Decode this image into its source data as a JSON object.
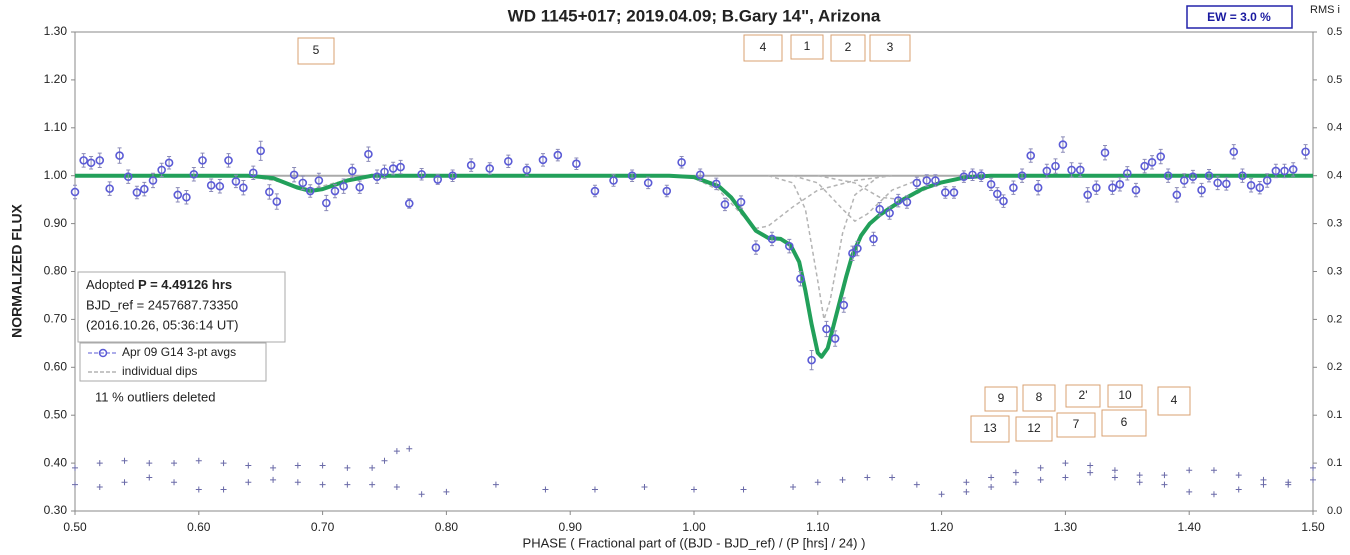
{
  "chart_data": {
    "type": "scatter",
    "title": "WD 1145+017; 2019.04.09; B.Gary 14\", Arizona",
    "x_label": "PHASE ( Fractional part of ((BJD - BJD_ref) / (P [hrs] / 24) )",
    "y_label": "NORMALIZED FLUX",
    "y2_label": "RMS i",
    "xlim": [
      0.5,
      1.5
    ],
    "ylim": [
      0.3,
      1.3
    ],
    "y2lim": [
      0,
      0.5
    ],
    "xticks": [
      {
        "value": 0.5,
        "label": "0.50"
      },
      {
        "value": 0.6,
        "label": "0.60"
      },
      {
        "value": 0.7,
        "label": "0.70"
      },
      {
        "value": 0.8,
        "label": "0.80"
      },
      {
        "value": 0.9,
        "label": "0.90"
      },
      {
        "value": 1.0,
        "label": "1.00"
      },
      {
        "value": 1.1,
        "label": "1.10"
      },
      {
        "value": 1.2,
        "label": "1.20"
      },
      {
        "value": 1.3,
        "label": "1.30"
      },
      {
        "value": 1.4,
        "label": "1.40"
      },
      {
        "value": 1.5,
        "label": "1.50"
      }
    ],
    "yticks": [
      {
        "value": 0.3,
        "label": "0.30"
      },
      {
        "value": 0.4,
        "label": "0.40"
      },
      {
        "value": 0.5,
        "label": "0.50"
      },
      {
        "value": 0.6,
        "label": "0.60"
      },
      {
        "value": 0.7,
        "label": "0.70"
      },
      {
        "value": 0.8,
        "label": "0.80"
      },
      {
        "value": 0.9,
        "label": "0.90"
      },
      {
        "value": 1.0,
        "label": "1.00"
      },
      {
        "value": 1.1,
        "label": "1.10"
      },
      {
        "value": 1.2,
        "label": "1.20"
      },
      {
        "value": 1.3,
        "label": "1.30"
      }
    ],
    "y2ticks": [
      {
        "value": 0,
        "label": "0.0"
      },
      {
        "value": 0.05,
        "label": "0.1"
      },
      0.1,
      {
        "value": 0.15,
        "label": "0.2"
      },
      0.2,
      {
        "value": 0.25,
        "label": "0.3"
      },
      0.3,
      {
        "value": 0.35,
        "label": "0.4"
      },
      0.4,
      {
        "value": 0.45,
        "label": "0.5"
      },
      0.5
    ],
    "series": [
      {
        "name": "Apr 09 G14 3-pt avgs",
        "color": "#5b5bd6",
        "x": [
          0.5,
          0.507,
          0.513,
          0.52,
          0.528,
          0.536,
          0.543,
          0.55,
          0.556,
          0.563,
          0.57,
          0.576,
          0.583,
          0.59,
          0.596,
          0.603,
          0.61,
          0.617,
          0.624,
          0.63,
          0.636,
          0.644,
          0.65,
          0.657,
          0.663,
          0.677,
          0.684,
          0.69,
          0.697,
          0.703,
          0.71,
          0.717,
          0.724,
          0.73,
          0.737,
          0.744,
          0.75,
          0.757,
          0.763,
          0.77,
          0.78,
          0.793,
          0.805,
          0.82,
          0.835,
          0.85,
          0.865,
          0.878,
          0.89,
          0.905,
          0.92,
          0.935,
          0.95,
          0.963,
          0.978,
          0.99,
          1.005,
          1.018,
          1.025,
          1.038,
          1.05,
          1.063,
          1.077,
          1.086,
          1.095,
          1.107,
          1.114,
          1.121,
          1.128,
          1.132,
          1.145,
          1.15,
          1.158,
          1.165,
          1.172,
          1.18,
          1.188,
          1.195,
          1.203,
          1.21,
          1.218,
          1.225,
          1.232,
          1.24,
          1.245,
          1.25,
          1.258,
          1.265,
          1.272,
          1.278,
          1.285,
          1.292,
          1.298,
          1.305,
          1.312,
          1.318,
          1.325,
          1.332,
          1.338,
          1.344,
          1.35,
          1.357,
          1.364,
          1.37,
          1.377,
          1.383,
          1.39,
          1.396,
          1.403,
          1.41,
          1.416,
          1.423,
          1.43,
          1.436,
          1.443,
          1.45,
          1.457,
          1.463,
          1.47,
          1.477,
          1.484,
          1.494
        ],
        "values": [
          0.966,
          1.032,
          1.027,
          1.032,
          0.973,
          1.042,
          0.998,
          0.965,
          0.972,
          0.99,
          1.012,
          1.027,
          0.96,
          0.955,
          1.003,
          1.032,
          0.98,
          0.978,
          1.032,
          0.988,
          0.975,
          1.006,
          1.052,
          0.966,
          0.946,
          1.002,
          0.985,
          0.968,
          0.99,
          0.943,
          0.968,
          0.978,
          1.01,
          0.976,
          1.045,
          0.998,
          1.008,
          1.015,
          1.018,
          0.942,
          1.003,
          0.992,
          1.0,
          1.022,
          1.015,
          1.03,
          1.012,
          1.033,
          1.043,
          1.025,
          0.968,
          0.99,
          1.0,
          0.985,
          0.968,
          1.028,
          1.002,
          0.983,
          0.94,
          0.945,
          0.85,
          0.868,
          0.853,
          0.785,
          0.615,
          0.68,
          0.66,
          0.73,
          0.838,
          0.848,
          0.868,
          0.93,
          0.922,
          0.948,
          0.945,
          0.985,
          0.99,
          0.99,
          0.965,
          0.965,
          0.998,
          1.002,
          1.0,
          0.982,
          0.962,
          0.947,
          0.975,
          1.0,
          1.042,
          0.975,
          1.01,
          1.02,
          1.065,
          1.012,
          1.012,
          0.96,
          0.975,
          1.048,
          0.975,
          0.982,
          1.005,
          0.97,
          1.02,
          1.028,
          1.04,
          1.0,
          0.96,
          0.99,
          0.998,
          0.97,
          1.0,
          0.985,
          0.983,
          1.05,
          1.0,
          0.98,
          0.975,
          0.99,
          1.01,
          1.01,
          1.013,
          1.05
        ],
        "errors": [
          0.014,
          0.014,
          0.013,
          0.015,
          0.014,
          0.016,
          0.014,
          0.013,
          0.014,
          0.015,
          0.014,
          0.013,
          0.015,
          0.014,
          0.014,
          0.015,
          0.013,
          0.014,
          0.014,
          0.013,
          0.015,
          0.014,
          0.02,
          0.015,
          0.016,
          0.015,
          0.014,
          0.013,
          0.015,
          0.016,
          0.014,
          0.015,
          0.014,
          0.013,
          0.015,
          0.014,
          0.014,
          0.013,
          0.014,
          0.01,
          0.012,
          0.01,
          0.012,
          0.013,
          0.012,
          0.013,
          0.012,
          0.013,
          0.012,
          0.012,
          0.012,
          0.012,
          0.012,
          0.012,
          0.012,
          0.012,
          0.012,
          0.012,
          0.013,
          0.013,
          0.014,
          0.014,
          0.014,
          0.015,
          0.02,
          0.016,
          0.016,
          0.015,
          0.015,
          0.015,
          0.014,
          0.014,
          0.013,
          0.013,
          0.013,
          0.012,
          0.012,
          0.012,
          0.012,
          0.012,
          0.012,
          0.012,
          0.012,
          0.013,
          0.013,
          0.013,
          0.014,
          0.014,
          0.014,
          0.015,
          0.014,
          0.015,
          0.016,
          0.015,
          0.014,
          0.015,
          0.014,
          0.015,
          0.014,
          0.014,
          0.014,
          0.014,
          0.014,
          0.014,
          0.015,
          0.014,
          0.015,
          0.014,
          0.013,
          0.014,
          0.013,
          0.014,
          0.013,
          0.015,
          0.014,
          0.014,
          0.013,
          0.014,
          0.014,
          0.014,
          0.014,
          0.015
        ]
      },
      {
        "name": "individual dips",
        "color": "#b4b4b4",
        "curves": [
          {
            "x": [
              0.64,
              0.67,
              0.69,
              0.71,
              0.74
            ],
            "values": [
              1.0,
              0.985,
              0.972,
              0.985,
              1.0
            ]
          },
          {
            "x": [
              0.98,
              1.0,
              1.02,
              1.04,
              1.05,
              1.06,
              1.08,
              1.1,
              1.13,
              1.16
            ],
            "values": [
              1.0,
              0.995,
              0.97,
              0.915,
              0.89,
              0.895,
              0.935,
              0.97,
              0.99,
              1.0
            ]
          },
          {
            "x": [
              1.06,
              1.08,
              1.09,
              1.1,
              1.105,
              1.11,
              1.12,
              1.13,
              1.15
            ],
            "values": [
              1.0,
              0.985,
              0.93,
              0.78,
              0.7,
              0.74,
              0.88,
              0.96,
              1.0
            ]
          },
          {
            "x": [
              1.08,
              1.1,
              1.12,
              1.13,
              1.14,
              1.16,
              1.19
            ],
            "values": [
              1.0,
              0.985,
              0.93,
              0.905,
              0.92,
              0.97,
              1.0
            ]
          },
          {
            "x": [
              1.1,
              1.13,
              1.15,
              1.17,
              1.19,
              1.22
            ],
            "values": [
              1.0,
              0.985,
              0.955,
              0.95,
              0.975,
              1.0
            ]
          }
        ]
      }
    ],
    "fit": {
      "color": "#22a05a",
      "x": [
        0.5,
        0.64,
        0.66,
        0.68,
        0.69,
        0.7,
        0.72,
        0.74,
        0.98,
        1.0,
        1.02,
        1.03,
        1.04,
        1.05,
        1.06,
        1.07,
        1.078,
        1.085,
        1.09,
        1.095,
        1.1,
        1.103,
        1.108,
        1.113,
        1.118,
        1.123,
        1.128,
        1.135,
        1.142,
        1.15,
        1.158,
        1.17,
        1.185,
        1.2,
        1.22,
        1.24,
        1.5
      ],
      "values": [
        1.0,
        1.0,
        0.995,
        0.975,
        0.968,
        0.972,
        0.99,
        1.0,
        1.0,
        0.997,
        0.978,
        0.955,
        0.92,
        0.885,
        0.87,
        0.868,
        0.855,
        0.82,
        0.76,
        0.69,
        0.63,
        0.622,
        0.64,
        0.69,
        0.74,
        0.79,
        0.835,
        0.875,
        0.9,
        0.918,
        0.932,
        0.952,
        0.973,
        0.986,
        0.997,
        1.0,
        1.0
      ]
    },
    "rms": [
      {
        "color": "#6a6aa8",
        "axis": "y2",
        "x": [
          0.5,
          0.52,
          0.54,
          0.56,
          0.58,
          0.6,
          0.62,
          0.64,
          0.66,
          0.68,
          0.7,
          0.72,
          0.74,
          0.75,
          0.76,
          0.77,
          1.0,
          1.22,
          1.24,
          1.26,
          1.28,
          1.3,
          1.32,
          1.34,
          1.36,
          1.38,
          1.4,
          1.42,
          1.44,
          1.46,
          1.48,
          1.5
        ],
        "values": [
          0.045,
          0.05,
          0.0525,
          0.05,
          0.05,
          0.0525,
          0.05,
          0.0475,
          0.045,
          0.0475,
          0.0475,
          0.045,
          0.045,
          0.0525,
          0.0625,
          0.065,
          null,
          0.03,
          0.035,
          0.04,
          0.045,
          0.05,
          0.0475,
          0.0425,
          0.0375,
          0.0375,
          0.0425,
          0.0425,
          0.0375,
          0.0325,
          0.03,
          0.045
        ]
      },
      {
        "color": "#6a6aa8",
        "axis": "y2",
        "x": [
          0.5,
          0.52,
          0.54,
          0.56,
          0.58,
          0.6,
          0.62,
          0.64,
          0.66,
          0.68,
          0.7,
          0.72,
          0.74,
          0.76,
          0.78,
          0.8,
          0.84,
          0.88,
          0.92,
          0.96,
          1.0,
          1.04,
          1.08,
          1.1,
          1.12,
          1.14,
          1.16,
          1.18,
          1.2,
          1.22,
          1.24,
          1.26,
          1.28,
          1.3,
          1.32,
          1.34,
          1.36,
          1.38,
          1.4,
          1.42,
          1.44,
          1.46,
          1.48,
          1.5
        ],
        "values": [
          0.0275,
          0.025,
          0.03,
          0.035,
          0.03,
          0.0225,
          0.0225,
          0.03,
          0.0325,
          0.03,
          0.0275,
          0.0275,
          0.0275,
          0.025,
          0.0175,
          0.02,
          0.0275,
          0.0225,
          0.0225,
          0.025,
          0.0225,
          0.0225,
          0.025,
          0.03,
          0.0325,
          0.035,
          0.035,
          0.0275,
          0.0175,
          0.02,
          0.025,
          0.03,
          0.0325,
          0.035,
          0.04,
          0.035,
          0.03,
          0.0275,
          0.02,
          0.0175,
          0.0225,
          0.0275,
          0.0275,
          0.0325
        ]
      }
    ],
    "annotations": [
      "5",
      "4",
      "1",
      "2",
      "3",
      "9",
      "8",
      "2'",
      "10",
      "4",
      "13",
      "12",
      "7",
      "6"
    ],
    "info": {
      "prefix": "Adopted ",
      "period": "P = 4.49126 hrs",
      "bjd": "BJD_ref = 2457687.73350",
      "date": "(2016.10.26, 05:36:14 UT)"
    },
    "note": "11 % outliers deleted",
    "ew": "EW =  3.0 %"
  }
}
